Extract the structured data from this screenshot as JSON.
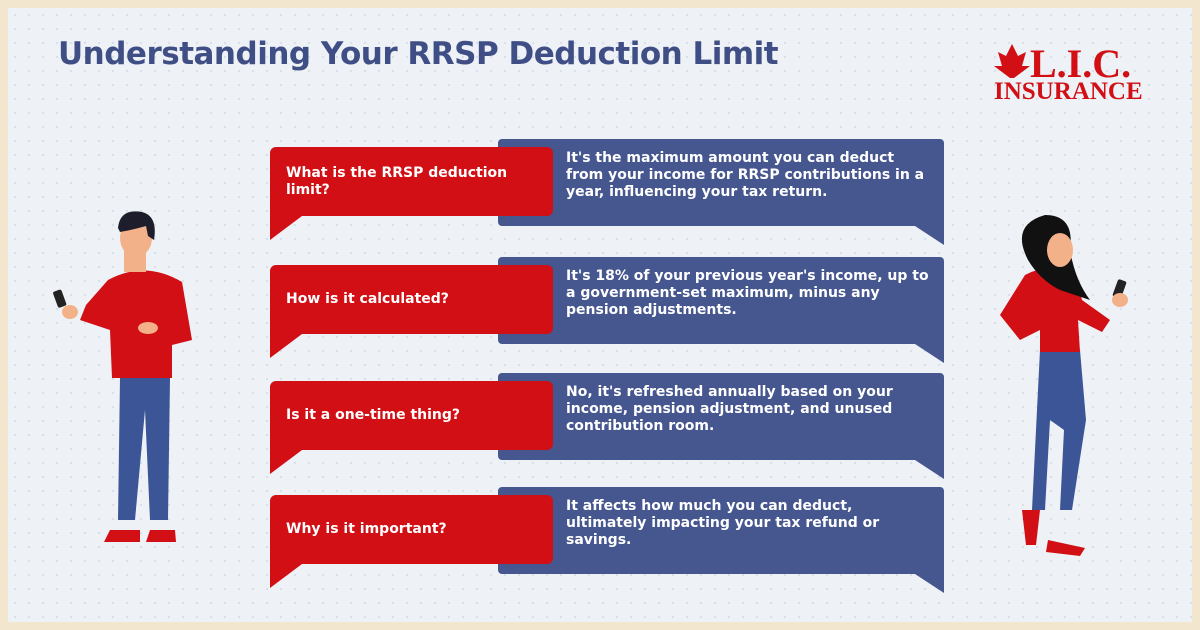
{
  "header": {
    "title": "Understanding Your RRSP Deduction Limit"
  },
  "logo": {
    "name": "L.I.C.",
    "tagline": "INSURANCE"
  },
  "faq": [
    {
      "question": "What is the RRSP deduction limit?",
      "answer": "It's the maximum amount you can deduct from your income for RRSP contributions in a year, influencing your tax return."
    },
    {
      "question": "How is it calculated?",
      "answer": "It's 18% of your previous year's income, up to a government-set maximum, minus any pension adjustments."
    },
    {
      "question": "Is it a one-time thing?",
      "answer": "No, it's refreshed annually based on your income, pension adjustment, and unused contribution room."
    },
    {
      "question": "Why is it important?",
      "answer": "It affects how much you can deduct, ultimately impacting your tax refund or savings."
    }
  ]
}
